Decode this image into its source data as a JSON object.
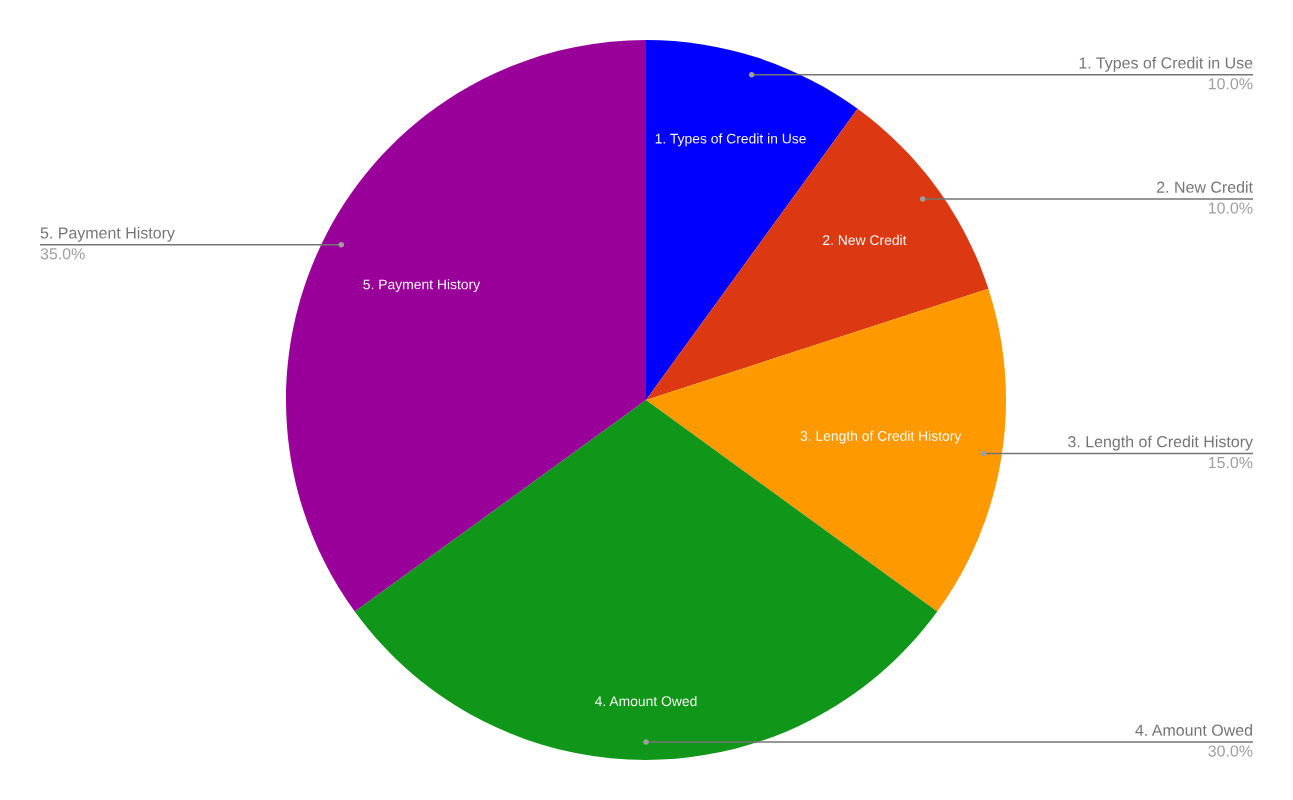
{
  "chart_data": {
    "type": "pie",
    "categories": [
      "1. Types of Credit in Use",
      "2. New Credit",
      "3. Length of Credit History",
      "4. Amount Owed",
      "5. Payment History"
    ],
    "values": [
      10,
      10,
      15,
      30,
      35
    ],
    "colors": [
      "#0000ff",
      "#dc3912",
      "#ff9900",
      "#109618",
      "#990099"
    ],
    "value_labels": [
      "10.0%",
      "10.0%",
      "15.0%",
      "30.0%",
      "35.0%"
    ]
  }
}
